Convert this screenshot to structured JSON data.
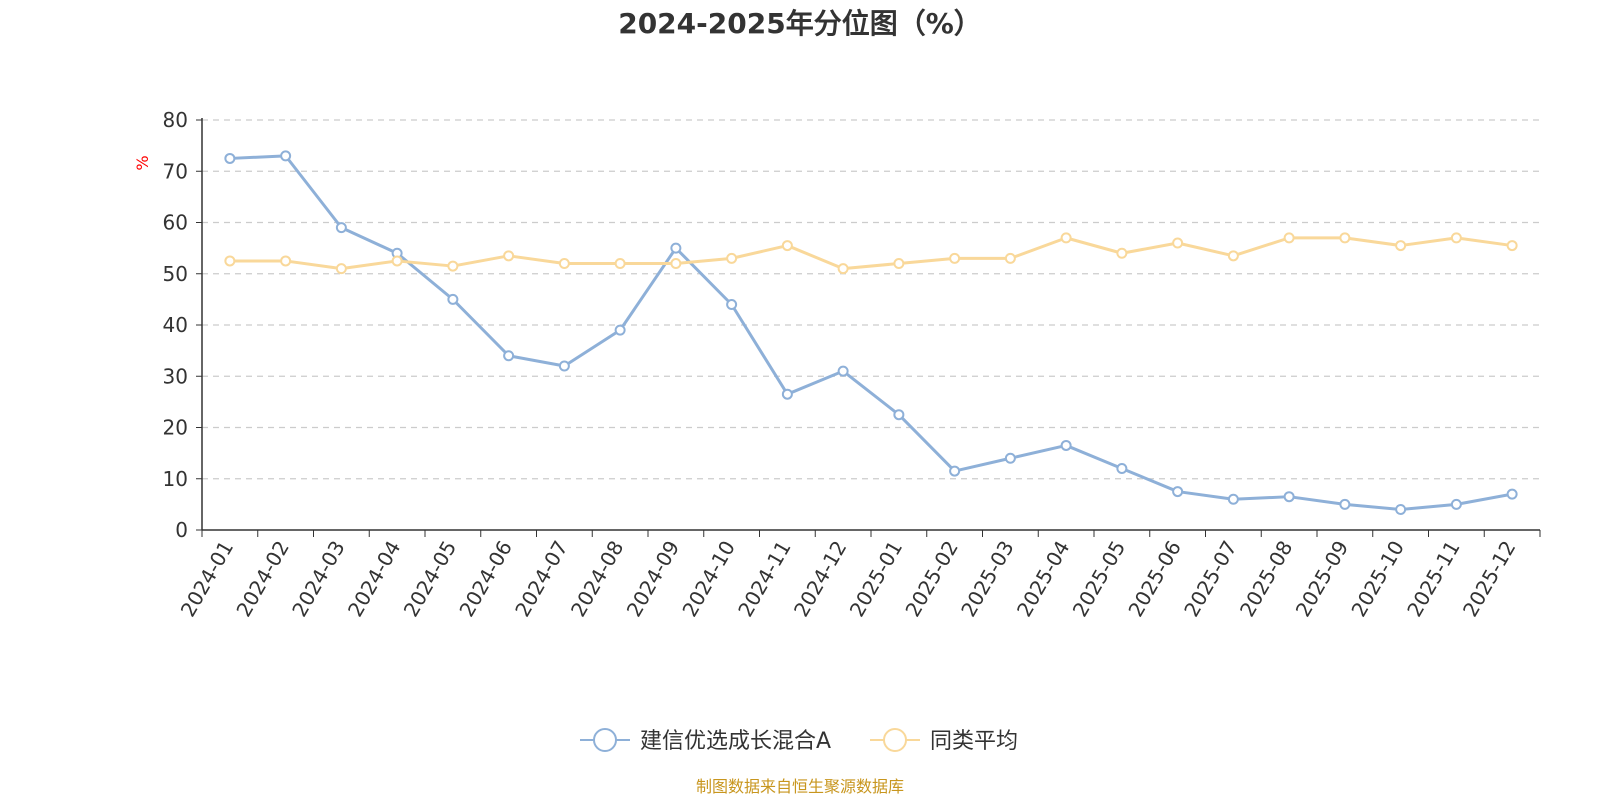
{
  "chart_data": {
    "type": "line",
    "title": "2024-2025年分位图（%）",
    "ylabel": "%",
    "xlabel": "",
    "ylim": [
      0,
      80
    ],
    "yticks": [
      0,
      10,
      20,
      30,
      40,
      50,
      60,
      70,
      80
    ],
    "grid": true,
    "legend_position": "bottom-center",
    "categories": [
      "2024-01",
      "2024-02",
      "2024-03",
      "2024-04",
      "2024-05",
      "2024-06",
      "2024-07",
      "2024-08",
      "2024-09",
      "2024-10",
      "2024-11",
      "2024-12",
      "2025-01",
      "2025-02",
      "2025-03",
      "2025-04",
      "2025-05",
      "2025-06",
      "2025-07",
      "2025-08",
      "2025-09",
      "2025-10",
      "2025-11",
      "2025-12"
    ],
    "series": [
      {
        "name": "建信优选成长混合A",
        "color": "#8eb0d8",
        "values": [
          72.5,
          73,
          59,
          54,
          45,
          34,
          32,
          39,
          55,
          44,
          26.5,
          31,
          22.5,
          11.5,
          14,
          16.5,
          12,
          7.5,
          6,
          6.5,
          5,
          4,
          5,
          7
        ]
      },
      {
        "name": "同类平均",
        "color": "#f9d89a",
        "values": [
          52.5,
          52.5,
          51,
          52.5,
          51.5,
          53.5,
          52,
          52,
          52,
          53,
          55.5,
          51,
          52,
          53,
          53,
          57,
          54,
          56,
          53.5,
          57,
          57,
          55.5,
          57,
          55.5
        ]
      }
    ]
  },
  "source_text": "制图数据来自恒生聚源数据库",
  "colors": {
    "axis": "#333333",
    "grid": "#cccccc",
    "source": "#c8961e",
    "unit": "#ff0000"
  }
}
